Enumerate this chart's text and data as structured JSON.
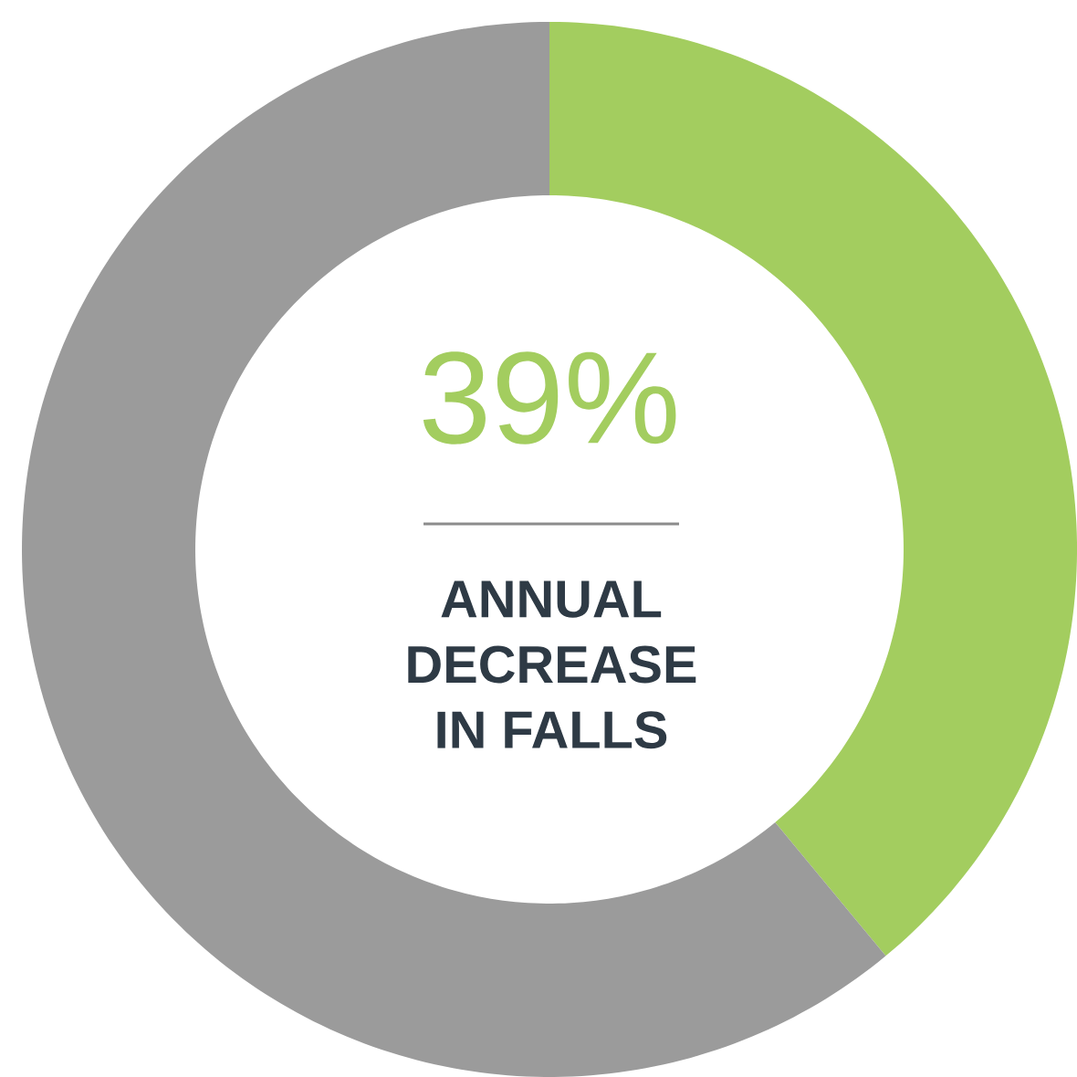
{
  "chart_data": {
    "type": "donut",
    "categories": [
      null,
      null
    ],
    "values": [
      39,
      61
    ],
    "colors": [
      "#a3cd5f",
      "#9b9b9b"
    ],
    "annotations": [
      "39%",
      "ANNUAL DECREASE IN FALLS"
    ]
  }
}
